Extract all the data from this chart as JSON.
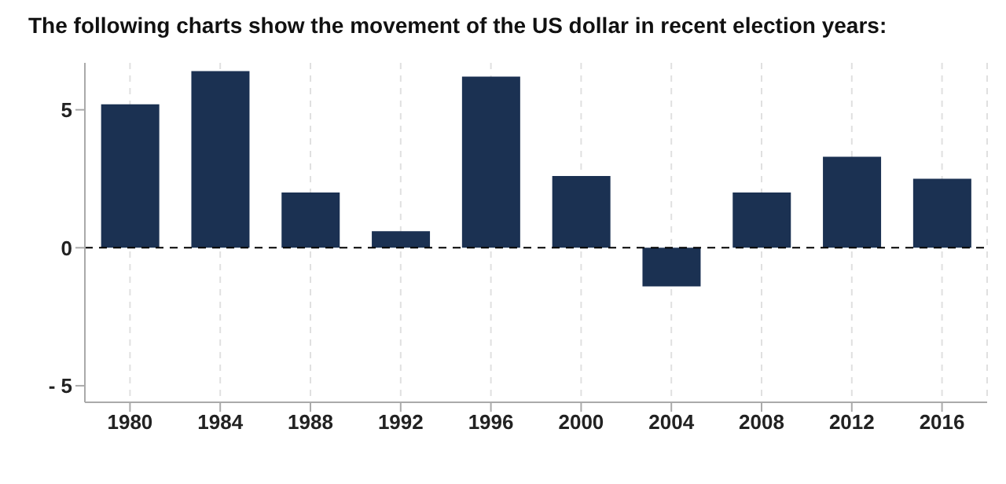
{
  "chart_data": {
    "type": "bar",
    "title": "The following charts show the movement of the US dollar in recent election years:",
    "categories": [
      "1980",
      "1984",
      "1988",
      "1992",
      "1996",
      "2000",
      "2004",
      "2008",
      "2012",
      "2016"
    ],
    "values": [
      5.2,
      6.4,
      2.0,
      0.6,
      6.2,
      2.6,
      -1.4,
      2.0,
      3.3,
      2.5
    ],
    "color": "#1b3152",
    "ylim": [
      -5.6,
      6.7
    ],
    "yticks": [
      {
        "value": -5,
        "label": "- 5"
      },
      0,
      5
    ],
    "grid": "x",
    "ref_lines": [
      {
        "axis": "y",
        "value": 0,
        "label": null,
        "color": "#000000",
        "line_style": "dashed"
      }
    ]
  }
}
